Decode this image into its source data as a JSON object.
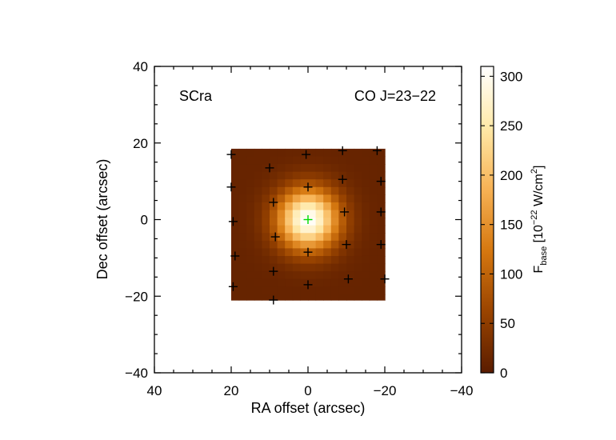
{
  "chart_data": {
    "type": "heatmap",
    "title": "",
    "annotations": {
      "source": "SCra",
      "line": "CO J=23−22"
    },
    "xlabel": "RA offset (arcsec)",
    "ylabel": "Dec offset (arcsec)",
    "xlim": [
      40,
      -40
    ],
    "ylim": [
      -40,
      40
    ],
    "x_ticks": [
      40,
      20,
      0,
      -20,
      -40
    ],
    "x_tick_labels": [
      "40",
      "20",
      "0",
      "−20",
      "−40"
    ],
    "y_ticks": [
      -40,
      -20,
      0,
      20,
      40
    ],
    "y_tick_labels": [
      "−40",
      "−20",
      "0",
      "20",
      "40"
    ],
    "map_extent": {
      "ra": [
        20,
        -20
      ],
      "dec": [
        -21,
        18.5
      ]
    },
    "map_peak": {
      "ra": 0,
      "dec": 0,
      "value": 310
    },
    "map_background": 12,
    "map_fwhm_arcsec": 13,
    "colorbar": {
      "label_main": "F",
      "label_sub": "base",
      "label_unit_prefix": " [10",
      "label_unit_exp": "−22",
      "label_unit_mid": " W/cm",
      "label_unit_exp2": "2",
      "label_unit_suffix": "]",
      "range": [
        0,
        310
      ],
      "ticks": [
        0,
        50,
        100,
        150,
        200,
        250,
        300
      ],
      "tick_labels": [
        "0",
        "50",
        "100",
        "150",
        "200",
        "250",
        "300"
      ],
      "colors": [
        "#5a1c00",
        "#9a4400",
        "#d67810",
        "#f7b255",
        "#ffe9a8",
        "#ffffff"
      ]
    },
    "detector_positions": [
      [
        20,
        17
      ],
      [
        10,
        13.5
      ],
      [
        0.5,
        17
      ],
      [
        -9,
        18
      ],
      [
        -18,
        18
      ],
      [
        20,
        8.5
      ],
      [
        9,
        4.5
      ],
      [
        0,
        8.5
      ],
      [
        -9,
        10.5
      ],
      [
        -19,
        10
      ],
      [
        19.5,
        -0.5
      ],
      [
        -9.5,
        2
      ],
      [
        -19,
        2
      ],
      [
        19,
        -9.5
      ],
      [
        8.5,
        -4.5
      ],
      [
        0,
        -8.5
      ],
      [
        -10,
        -6.5
      ],
      [
        -19,
        -6.5
      ],
      [
        19.5,
        -17.5
      ],
      [
        9,
        -13.5
      ],
      [
        0,
        -17
      ],
      [
        -10.5,
        -15.5
      ],
      [
        -20,
        -15.5
      ],
      [
        9,
        -21
      ]
    ],
    "central_position": [
      0,
      0
    ],
    "marker_color": "#000000",
    "central_marker_color": "#00dd00"
  }
}
